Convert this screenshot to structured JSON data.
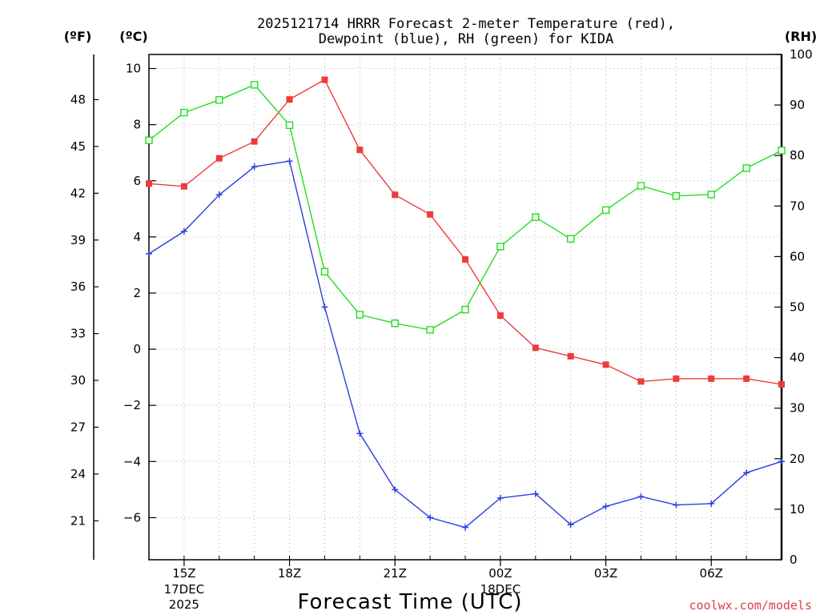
{
  "chart_data": {
    "type": "line",
    "title_line1": "2025121714 HRRR Forecast 2-meter Temperature (red),",
    "title_line2": "Dewpoint (blue), RH (green) for KIDA",
    "unit_f": "(ºF)",
    "unit_c": "(ºC)",
    "unit_rh": "(RH)",
    "xlabel": "Forecast Time (UTC)",
    "credit": "coolwx.com/models",
    "x_hours": [
      14,
      15,
      16,
      17,
      18,
      19,
      20,
      21,
      22,
      23,
      24,
      25,
      26,
      27,
      28,
      29,
      30,
      31,
      32
    ],
    "x_range": [
      14,
      32
    ],
    "x_ticks": [
      {
        "hour": 15,
        "label": "15Z",
        "sub1": "17DEC",
        "sub2": "2025"
      },
      {
        "hour": 18,
        "label": "18Z",
        "sub1": "",
        "sub2": ""
      },
      {
        "hour": 21,
        "label": "21Z",
        "sub1": "",
        "sub2": ""
      },
      {
        "hour": 24,
        "label": "00Z",
        "sub1": "18DEC",
        "sub2": ""
      },
      {
        "hour": 27,
        "label": "03Z",
        "sub1": "",
        "sub2": ""
      },
      {
        "hour": 30,
        "label": "06Z",
        "sub1": "",
        "sub2": ""
      }
    ],
    "celsius_axis": {
      "range": [
        -7.5,
        10.5
      ],
      "ticks": [
        "10",
        "8",
        "6",
        "4",
        "2",
        "0",
        "−2",
        "−4",
        "−6"
      ],
      "tick_values": [
        10,
        8,
        6,
        4,
        2,
        0,
        -2,
        -4,
        -6
      ]
    },
    "fahrenheit_axis": {
      "ticks": [
        "48",
        "45",
        "42",
        "39",
        "36",
        "33",
        "30",
        "27",
        "24",
        "21"
      ],
      "tick_values": [
        48,
        45,
        42,
        39,
        36,
        33,
        30,
        27,
        24,
        21
      ]
    },
    "rh_axis": {
      "range": [
        0,
        100
      ],
      "ticks": [
        "100",
        "90",
        "80",
        "70",
        "60",
        "50",
        "40",
        "30",
        "20",
        "10",
        "0"
      ],
      "tick_values": [
        100,
        90,
        80,
        70,
        60,
        50,
        40,
        30,
        20,
        10,
        0
      ]
    },
    "series": [
      {
        "name": "Temperature",
        "axis": "celsius",
        "color": "#ee3b3b",
        "marker": "filled-square",
        "values": [
          5.9,
          5.8,
          6.8,
          7.4,
          8.9,
          9.6,
          7.1,
          5.5,
          4.8,
          3.2,
          1.2,
          0.05,
          -0.25,
          -0.55,
          -1.15,
          -1.05,
          -1.05,
          -1.05,
          -1.25
        ]
      },
      {
        "name": "Dewpoint",
        "axis": "celsius",
        "color": "#2a3fe0",
        "marker": "plus",
        "values": [
          3.4,
          4.2,
          5.5,
          6.5,
          6.7,
          1.5,
          -3.0,
          -5.0,
          -6.0,
          -6.35,
          -5.3,
          -5.15,
          -6.25,
          -5.6,
          -5.25,
          -5.55,
          -5.5,
          -4.4,
          -4.0
        ]
      },
      {
        "name": "RH",
        "axis": "rh",
        "color": "#22dd22",
        "marker": "open-square",
        "values": [
          83,
          88.5,
          91,
          94,
          86,
          57,
          48.5,
          46.8,
          45.5,
          49.5,
          62,
          67.8,
          63.5,
          69.2,
          74,
          72,
          72.3,
          77.5,
          81
        ]
      }
    ]
  }
}
